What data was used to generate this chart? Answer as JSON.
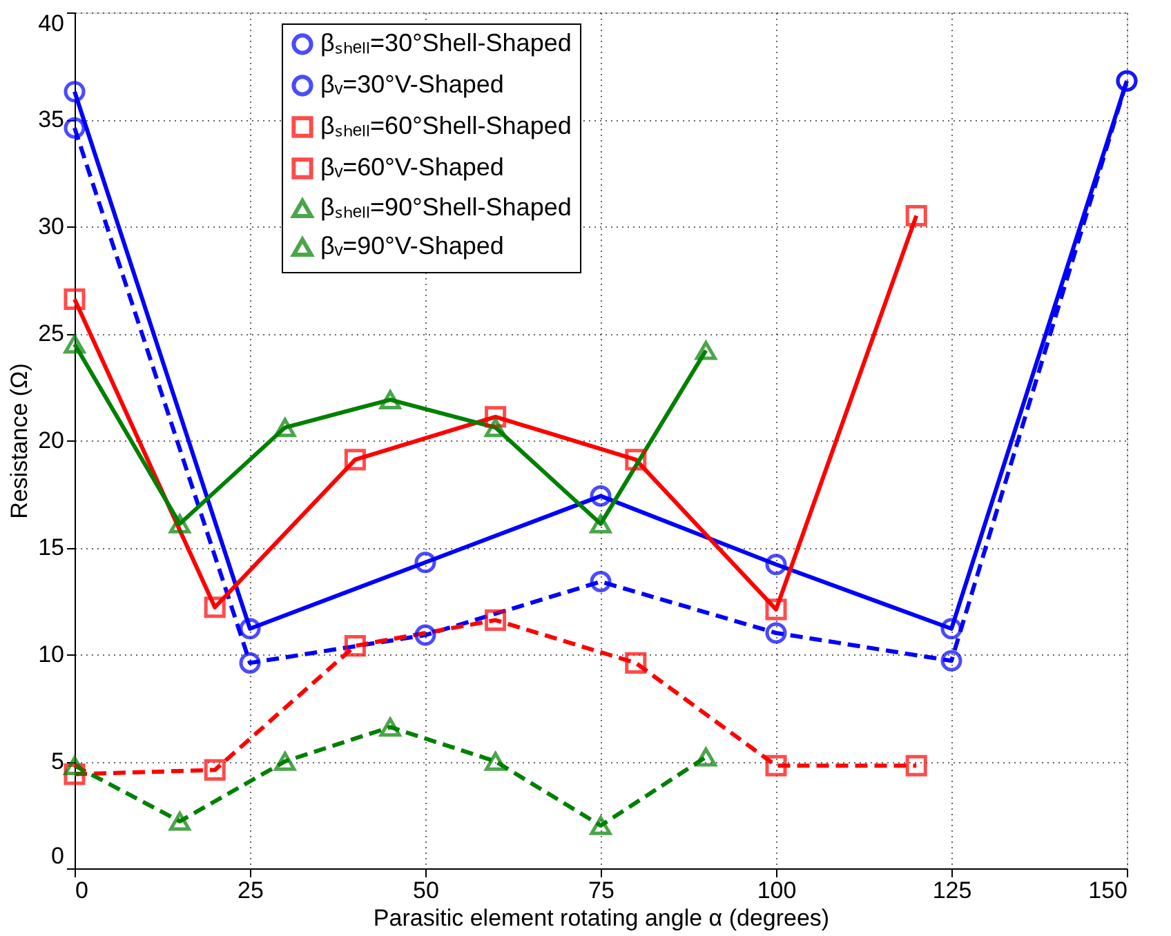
{
  "chart_data": {
    "type": "line",
    "xlabel": "Parasitic element rotating angle α (degrees)",
    "ylabel": "Resistance (Ω)",
    "xlim": [
      0,
      150
    ],
    "xticks": [
      0,
      25,
      50,
      75,
      100,
      125,
      150
    ],
    "ylim": [
      0,
      40
    ],
    "yticks": [
      0,
      5,
      10,
      15,
      20,
      25,
      30,
      35,
      40
    ],
    "grid": true,
    "legend": "top",
    "series": [
      {
        "name": "βₛₕₑₗₗ=30°Shell-Shaped",
        "color": "#0000ff",
        "marker": "circle",
        "line_style": "solid",
        "x": [
          0,
          25,
          50,
          75,
          100,
          125,
          150
        ],
        "values": [
          36.3,
          11.2,
          14.3,
          17.4,
          14.2,
          11.2,
          36.8
        ]
      },
      {
        "name": "βᵥ=30°V-Shaped",
        "color": "#0000ff",
        "marker": "circle",
        "line_style": "dashed",
        "x": [
          0,
          25,
          50,
          75,
          100,
          125,
          150
        ],
        "values": [
          34.6,
          9.6,
          10.9,
          13.4,
          11.0,
          9.7,
          36.8
        ]
      },
      {
        "name": "βₛₕₑₗₗ=60°Shell-Shaped",
        "color": "#ff0000",
        "marker": "square",
        "line_style": "solid",
        "x": [
          0,
          20,
          40,
          60,
          80,
          100,
          120
        ],
        "values": [
          26.6,
          12.2,
          19.1,
          21.1,
          19.1,
          12.1,
          30.5
        ]
      },
      {
        "name": "βᵥ=60°V-Shaped",
        "color": "#ff0000",
        "marker": "square",
        "line_style": "dashed",
        "x": [
          0,
          20,
          40,
          60,
          80,
          100,
          120
        ],
        "values": [
          4.4,
          4.6,
          10.4,
          11.6,
          9.6,
          4.8,
          4.8
        ]
      },
      {
        "name": "βₛₕₑₗₗ=90°Shell-Shaped",
        "color": "#008000",
        "marker": "triangle",
        "line_style": "solid",
        "x": [
          0,
          15,
          30,
          45,
          60,
          75,
          90
        ],
        "values": [
          24.5,
          16.1,
          20.6,
          21.9,
          20.6,
          16.1,
          24.2
        ]
      },
      {
        "name": "βᵥ=90°V-Shaped",
        "color": "#008000",
        "marker": "triangle",
        "line_style": "dashed",
        "x": [
          0,
          15,
          30,
          45,
          60,
          75,
          90
        ],
        "values": [
          4.8,
          2.2,
          5.0,
          6.6,
          5.0,
          2.0,
          5.2
        ]
      }
    ]
  }
}
